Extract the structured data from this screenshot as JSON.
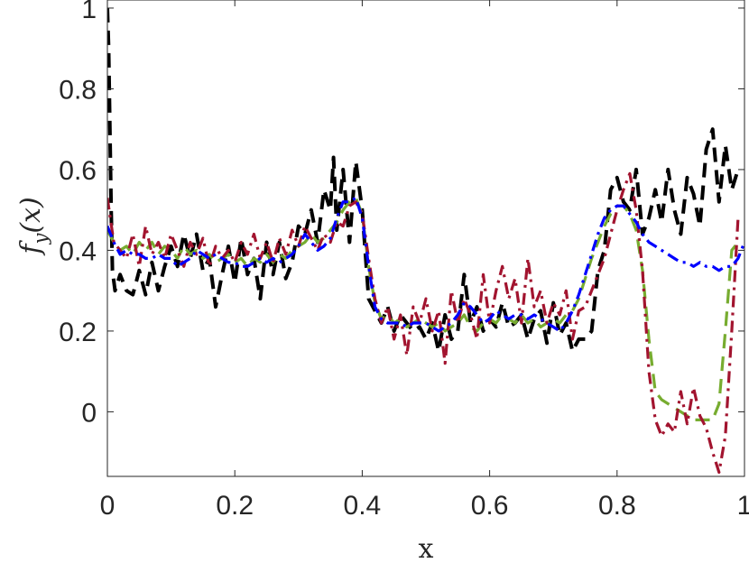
{
  "chart_data": {
    "type": "line",
    "title": "",
    "xlabel": "x",
    "ylabel_parts": [
      "f",
      "y",
      "(x)"
    ],
    "xlim": [
      0,
      1
    ],
    "ylim": [
      -0.16,
      1.02
    ],
    "xticks": [
      0,
      0.2,
      0.4,
      0.6,
      0.8,
      1
    ],
    "xtick_labels": [
      "0",
      "0.2",
      "0.4",
      "0.6",
      "0.8",
      "1"
    ],
    "yticks": [
      0,
      0.2,
      0.4,
      0.6,
      0.8,
      1
    ],
    "ytick_labels": [
      "0",
      "0.2",
      "0.4",
      "0.6",
      "0.8",
      "1"
    ],
    "grid": false,
    "series": [
      {
        "color": "#000000",
        "style": "dashed",
        "x": [
          0.0,
          0.002,
          0.004,
          0.006,
          0.008,
          0.012,
          0.02,
          0.03,
          0.04,
          0.05,
          0.06,
          0.07,
          0.08,
          0.09,
          0.1,
          0.11,
          0.12,
          0.13,
          0.14,
          0.15,
          0.16,
          0.17,
          0.18,
          0.19,
          0.2,
          0.21,
          0.22,
          0.23,
          0.24,
          0.25,
          0.26,
          0.27,
          0.28,
          0.29,
          0.3,
          0.31,
          0.32,
          0.33,
          0.34,
          0.35,
          0.355,
          0.36,
          0.37,
          0.38,
          0.39,
          0.4,
          0.41,
          0.42,
          0.43,
          0.44,
          0.45,
          0.46,
          0.47,
          0.48,
          0.49,
          0.5,
          0.51,
          0.52,
          0.53,
          0.54,
          0.55,
          0.56,
          0.57,
          0.58,
          0.59,
          0.6,
          0.61,
          0.62,
          0.63,
          0.64,
          0.65,
          0.66,
          0.67,
          0.68,
          0.69,
          0.7,
          0.71,
          0.72,
          0.73,
          0.74,
          0.75,
          0.76,
          0.77,
          0.78,
          0.79,
          0.8,
          0.81,
          0.82,
          0.83,
          0.84,
          0.85,
          0.86,
          0.87,
          0.88,
          0.89,
          0.9,
          0.91,
          0.92,
          0.93,
          0.94,
          0.95,
          0.96,
          0.97,
          0.98,
          0.99
        ],
        "y": [
          1.0,
          0.9,
          0.7,
          0.5,
          0.35,
          0.3,
          0.34,
          0.3,
          0.29,
          0.35,
          0.29,
          0.37,
          0.3,
          0.36,
          0.41,
          0.36,
          0.44,
          0.38,
          0.44,
          0.35,
          0.38,
          0.26,
          0.34,
          0.41,
          0.32,
          0.43,
          0.34,
          0.38,
          0.28,
          0.42,
          0.34,
          0.42,
          0.33,
          0.37,
          0.46,
          0.44,
          0.5,
          0.42,
          0.55,
          0.5,
          0.63,
          0.45,
          0.6,
          0.42,
          0.62,
          0.5,
          0.28,
          0.25,
          0.22,
          0.26,
          0.2,
          0.24,
          0.22,
          0.2,
          0.21,
          0.18,
          0.22,
          0.15,
          0.24,
          0.18,
          0.2,
          0.34,
          0.22,
          0.26,
          0.2,
          0.23,
          0.21,
          0.27,
          0.21,
          0.22,
          0.24,
          0.18,
          0.23,
          0.25,
          0.17,
          0.27,
          0.19,
          0.22,
          0.15,
          0.18,
          0.18,
          0.2,
          0.35,
          0.4,
          0.55,
          0.58,
          0.52,
          0.5,
          0.6,
          0.44,
          0.48,
          0.55,
          0.47,
          0.6,
          0.5,
          0.44,
          0.58,
          0.54,
          0.46,
          0.65,
          0.7,
          0.52,
          0.66,
          0.55,
          0.6
        ]
      },
      {
        "color": "#77ac30",
        "style": "dashed",
        "x": [
          0.0,
          0.01,
          0.02,
          0.03,
          0.04,
          0.05,
          0.06,
          0.07,
          0.08,
          0.09,
          0.1,
          0.11,
          0.12,
          0.13,
          0.14,
          0.15,
          0.16,
          0.17,
          0.18,
          0.19,
          0.2,
          0.21,
          0.22,
          0.23,
          0.24,
          0.25,
          0.26,
          0.27,
          0.28,
          0.29,
          0.3,
          0.31,
          0.32,
          0.33,
          0.34,
          0.35,
          0.36,
          0.37,
          0.38,
          0.39,
          0.4,
          0.41,
          0.42,
          0.43,
          0.44,
          0.45,
          0.46,
          0.47,
          0.48,
          0.49,
          0.5,
          0.51,
          0.52,
          0.53,
          0.54,
          0.55,
          0.56,
          0.57,
          0.58,
          0.59,
          0.6,
          0.61,
          0.62,
          0.63,
          0.64,
          0.65,
          0.66,
          0.67,
          0.68,
          0.69,
          0.7,
          0.71,
          0.72,
          0.73,
          0.74,
          0.75,
          0.76,
          0.77,
          0.78,
          0.79,
          0.8,
          0.81,
          0.82,
          0.83,
          0.84,
          0.85,
          0.86,
          0.87,
          0.88,
          0.89,
          0.9,
          0.91,
          0.92,
          0.93,
          0.94,
          0.95,
          0.96,
          0.97,
          0.98,
          0.99
        ],
        "y": [
          0.45,
          0.42,
          0.4,
          0.41,
          0.39,
          0.42,
          0.4,
          0.42,
          0.39,
          0.41,
          0.4,
          0.38,
          0.41,
          0.39,
          0.4,
          0.38,
          0.39,
          0.37,
          0.38,
          0.39,
          0.37,
          0.38,
          0.36,
          0.38,
          0.37,
          0.39,
          0.37,
          0.39,
          0.38,
          0.4,
          0.41,
          0.42,
          0.44,
          0.42,
          0.43,
          0.45,
          0.47,
          0.5,
          0.52,
          0.53,
          0.49,
          0.36,
          0.27,
          0.23,
          0.24,
          0.22,
          0.23,
          0.21,
          0.22,
          0.23,
          0.22,
          0.21,
          0.22,
          0.2,
          0.21,
          0.22,
          0.24,
          0.21,
          0.2,
          0.22,
          0.23,
          0.22,
          0.24,
          0.23,
          0.22,
          0.24,
          0.22,
          0.23,
          0.21,
          0.22,
          0.23,
          0.22,
          0.24,
          0.25,
          0.28,
          0.33,
          0.38,
          0.42,
          0.46,
          0.49,
          0.51,
          0.51,
          0.49,
          0.45,
          0.35,
          0.18,
          0.05,
          0.03,
          0.02,
          0.01,
          0.0,
          -0.01,
          -0.02,
          -0.02,
          -0.02,
          -0.02,
          0.02,
          0.2,
          0.4,
          0.42
        ]
      },
      {
        "color": "#a2142f",
        "style": "dashdot",
        "x": [
          0.0,
          0.01,
          0.02,
          0.03,
          0.04,
          0.05,
          0.06,
          0.07,
          0.08,
          0.09,
          0.1,
          0.11,
          0.12,
          0.13,
          0.14,
          0.15,
          0.16,
          0.17,
          0.18,
          0.19,
          0.2,
          0.21,
          0.22,
          0.23,
          0.24,
          0.25,
          0.26,
          0.27,
          0.28,
          0.29,
          0.3,
          0.31,
          0.32,
          0.33,
          0.34,
          0.35,
          0.36,
          0.37,
          0.38,
          0.39,
          0.4,
          0.41,
          0.42,
          0.43,
          0.44,
          0.45,
          0.46,
          0.47,
          0.48,
          0.49,
          0.5,
          0.51,
          0.52,
          0.53,
          0.54,
          0.55,
          0.56,
          0.57,
          0.58,
          0.59,
          0.6,
          0.61,
          0.62,
          0.63,
          0.64,
          0.65,
          0.66,
          0.67,
          0.68,
          0.69,
          0.7,
          0.71,
          0.72,
          0.73,
          0.74,
          0.75,
          0.76,
          0.77,
          0.78,
          0.79,
          0.8,
          0.81,
          0.82,
          0.83,
          0.84,
          0.85,
          0.86,
          0.87,
          0.88,
          0.89,
          0.9,
          0.91,
          0.92,
          0.93,
          0.94,
          0.95,
          0.96,
          0.97,
          0.98,
          0.99
        ],
        "y": [
          0.53,
          0.42,
          0.4,
          0.38,
          0.44,
          0.36,
          0.46,
          0.39,
          0.42,
          0.38,
          0.44,
          0.4,
          0.36,
          0.42,
          0.39,
          0.43,
          0.36,
          0.41,
          0.38,
          0.4,
          0.37,
          0.42,
          0.39,
          0.44,
          0.38,
          0.42,
          0.37,
          0.43,
          0.39,
          0.45,
          0.41,
          0.46,
          0.43,
          0.4,
          0.44,
          0.42,
          0.47,
          0.46,
          0.51,
          0.52,
          0.49,
          0.38,
          0.28,
          0.22,
          0.26,
          0.18,
          0.24,
          0.14,
          0.26,
          0.22,
          0.28,
          0.2,
          0.25,
          0.12,
          0.3,
          0.22,
          0.28,
          0.24,
          0.18,
          0.34,
          0.22,
          0.3,
          0.36,
          0.28,
          0.33,
          0.22,
          0.38,
          0.26,
          0.3,
          0.22,
          0.27,
          0.24,
          0.3,
          0.18,
          0.25,
          0.26,
          0.3,
          0.34,
          0.38,
          0.44,
          0.5,
          0.55,
          0.59,
          0.5,
          0.35,
          0.1,
          -0.02,
          -0.06,
          -0.03,
          -0.05,
          0.05,
          -0.03,
          0.06,
          -0.01,
          -0.04,
          -0.1,
          -0.15,
          -0.06,
          0.2,
          0.48
        ]
      },
      {
        "color": "#0000ff",
        "style": "dashdot",
        "x": [
          0.0,
          0.01,
          0.02,
          0.03,
          0.04,
          0.05,
          0.06,
          0.07,
          0.08,
          0.09,
          0.1,
          0.11,
          0.12,
          0.13,
          0.14,
          0.15,
          0.16,
          0.17,
          0.18,
          0.19,
          0.2,
          0.21,
          0.22,
          0.23,
          0.24,
          0.25,
          0.26,
          0.27,
          0.28,
          0.29,
          0.3,
          0.31,
          0.32,
          0.33,
          0.34,
          0.35,
          0.36,
          0.37,
          0.38,
          0.39,
          0.4,
          0.41,
          0.42,
          0.43,
          0.44,
          0.45,
          0.46,
          0.47,
          0.48,
          0.49,
          0.5,
          0.51,
          0.52,
          0.53,
          0.54,
          0.55,
          0.56,
          0.57,
          0.58,
          0.59,
          0.6,
          0.61,
          0.62,
          0.63,
          0.64,
          0.65,
          0.66,
          0.67,
          0.68,
          0.69,
          0.7,
          0.71,
          0.72,
          0.73,
          0.74,
          0.75,
          0.76,
          0.77,
          0.78,
          0.79,
          0.8,
          0.81,
          0.82,
          0.83,
          0.84,
          0.85,
          0.86,
          0.87,
          0.88,
          0.89,
          0.9,
          0.91,
          0.92,
          0.93,
          0.94,
          0.95,
          0.96,
          0.97,
          0.98,
          0.99,
          1.0
        ],
        "y": [
          0.46,
          0.42,
          0.39,
          0.4,
          0.39,
          0.39,
          0.38,
          0.38,
          0.39,
          0.38,
          0.38,
          0.36,
          0.37,
          0.38,
          0.4,
          0.39,
          0.38,
          0.39,
          0.38,
          0.37,
          0.37,
          0.36,
          0.36,
          0.37,
          0.38,
          0.37,
          0.38,
          0.37,
          0.38,
          0.39,
          0.41,
          0.44,
          0.42,
          0.4,
          0.41,
          0.43,
          0.48,
          0.52,
          0.52,
          0.53,
          0.48,
          0.36,
          0.26,
          0.23,
          0.22,
          0.22,
          0.22,
          0.21,
          0.22,
          0.22,
          0.22,
          0.21,
          0.2,
          0.21,
          0.22,
          0.24,
          0.27,
          0.26,
          0.24,
          0.22,
          0.23,
          0.25,
          0.24,
          0.23,
          0.24,
          0.24,
          0.23,
          0.24,
          0.23,
          0.22,
          0.21,
          0.2,
          0.22,
          0.25,
          0.29,
          0.34,
          0.39,
          0.44,
          0.48,
          0.5,
          0.51,
          0.51,
          0.49,
          0.47,
          0.44,
          0.42,
          0.41,
          0.4,
          0.39,
          0.38,
          0.37,
          0.37,
          0.36,
          0.37,
          0.36,
          0.36,
          0.35,
          0.36,
          0.36,
          0.38,
          0.42
        ]
      }
    ]
  }
}
